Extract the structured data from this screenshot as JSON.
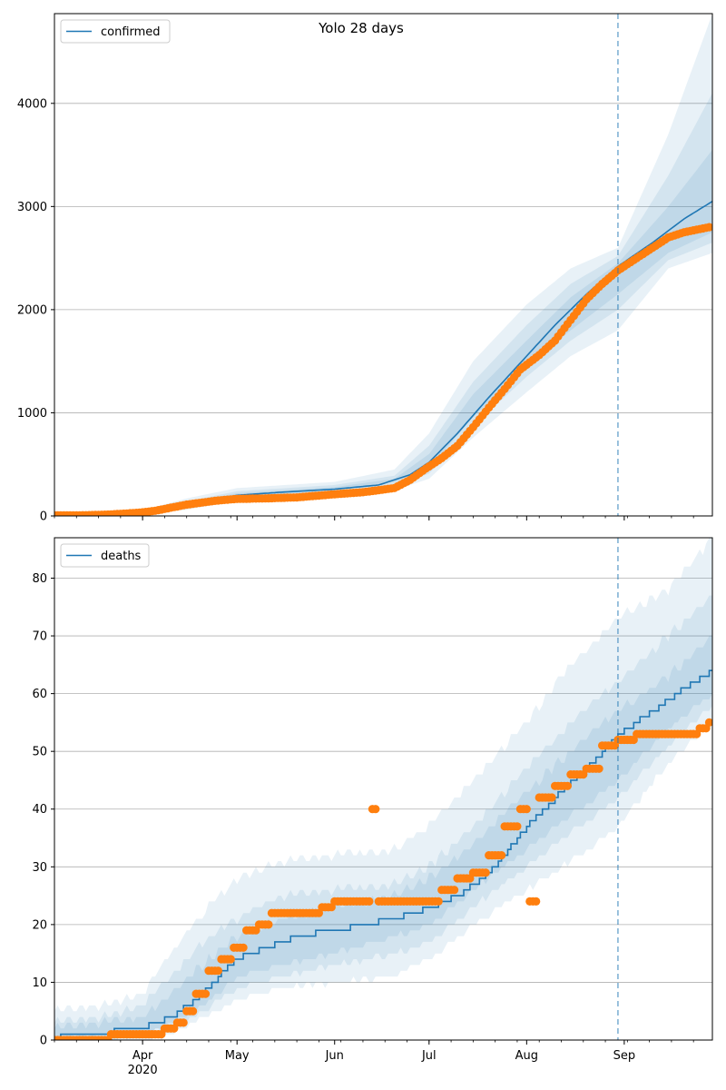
{
  "figure": {
    "title": "Yolo 28 days"
  },
  "colors": {
    "line": "#1f77b4",
    "points": "#ff7f0e",
    "band": "#1f77b4",
    "grid": "#b0b0b0",
    "axis": "#000000"
  },
  "chart_data": [
    {
      "type": "line",
      "legend": "confirmed",
      "legend_position": "top-left",
      "grid": "horizontal",
      "xlim": [
        "2020-03-04",
        "2020-09-29"
      ],
      "ylim": [
        0,
        4870
      ],
      "yticks": [
        0,
        1000,
        2000,
        3000,
        4000
      ],
      "forecast_start": "2020-08-30",
      "model": {
        "name": "confirmed",
        "x": [
          "2020-03-04",
          "2020-03-22",
          "2020-04-01",
          "2020-04-15",
          "2020-05-01",
          "2020-05-15",
          "2020-06-01",
          "2020-06-15",
          "2020-06-25",
          "2020-07-01",
          "2020-07-10",
          "2020-07-20",
          "2020-08-01",
          "2020-08-10",
          "2020-08-20",
          "2020-08-30",
          "2020-09-10",
          "2020-09-20",
          "2020-09-29"
        ],
        "values": [
          20,
          20,
          30,
          110,
          200,
          230,
          260,
          300,
          400,
          520,
          800,
          1150,
          1550,
          1850,
          2150,
          2420,
          2650,
          2880,
          3050
        ]
      },
      "bands": {
        "x": [
          "2020-03-04",
          "2020-04-01",
          "2020-04-15",
          "2020-05-01",
          "2020-06-01",
          "2020-06-20",
          "2020-07-01",
          "2020-07-15",
          "2020-08-01",
          "2020-08-15",
          "2020-08-30",
          "2020-09-15",
          "2020-09-29"
        ],
        "outer_lower": [
          0,
          15,
          60,
          150,
          210,
          250,
          360,
          760,
          1200,
          1550,
          1800,
          2400,
          2550
        ],
        "outer_upper": [
          40,
          55,
          170,
          270,
          330,
          450,
          800,
          1500,
          2050,
          2400,
          2600,
          3700,
          4870
        ],
        "mid_lower": [
          5,
          20,
          80,
          170,
          230,
          290,
          410,
          870,
          1350,
          1700,
          2000,
          2480,
          2650
        ],
        "mid_upper": [
          30,
          45,
          140,
          240,
          300,
          390,
          680,
          1300,
          1850,
          2250,
          2520,
          3300,
          4100
        ],
        "inner_lower": [
          10,
          25,
          95,
          185,
          245,
          330,
          460,
          960,
          1450,
          1800,
          2150,
          2550,
          2750
        ],
        "inner_upper": [
          25,
          38,
          125,
          220,
          280,
          360,
          600,
          1180,
          1700,
          2120,
          2450,
          3000,
          3550
        ]
      },
      "observed": {
        "name": "observed",
        "x": [
          "2020-03-04",
          "2020-03-10",
          "2020-03-15",
          "2020-03-20",
          "2020-03-25",
          "2020-03-30",
          "2020-04-01",
          "2020-04-05",
          "2020-04-10",
          "2020-04-15",
          "2020-04-20",
          "2020-04-25",
          "2020-05-01",
          "2020-05-10",
          "2020-05-20",
          "2020-06-01",
          "2020-06-10",
          "2020-06-20",
          "2020-06-25",
          "2020-06-30",
          "2020-07-05",
          "2020-07-10",
          "2020-07-15",
          "2020-07-20",
          "2020-07-25",
          "2020-07-30",
          "2020-08-05",
          "2020-08-10",
          "2020-08-15",
          "2020-08-20",
          "2020-08-25",
          "2020-08-30",
          "2020-09-05",
          "2020-09-10",
          "2020-09-15",
          "2020-09-20",
          "2020-09-28"
        ],
        "values": [
          5,
          5,
          8,
          12,
          20,
          30,
          35,
          50,
          80,
          110,
          130,
          150,
          165,
          170,
          180,
          210,
          230,
          270,
          350,
          460,
          560,
          680,
          860,
          1050,
          1230,
          1420,
          1560,
          1700,
          1900,
          2100,
          2250,
          2380,
          2500,
          2600,
          2700,
          2750,
          2800
        ]
      }
    },
    {
      "type": "line",
      "legend": "deaths",
      "legend_position": "top-left",
      "grid": "horizontal",
      "xlim": [
        "2020-03-04",
        "2020-09-29"
      ],
      "ylim": [
        0,
        87
      ],
      "yticks": [
        0,
        10,
        20,
        30,
        40,
        50,
        60,
        70,
        80
      ],
      "xticks": [
        {
          "date": "2020-04-01",
          "label": "Apr"
        },
        {
          "date": "2020-05-01",
          "label": "May"
        },
        {
          "date": "2020-06-01",
          "label": "Jun"
        },
        {
          "date": "2020-07-01",
          "label": "Jul"
        },
        {
          "date": "2020-08-01",
          "label": "Aug"
        },
        {
          "date": "2020-09-01",
          "label": "Sep"
        }
      ],
      "xtick_year_label": "2020",
      "forecast_start": "2020-08-30",
      "model": {
        "name": "deaths",
        "x": [
          "2020-03-04",
          "2020-03-08",
          "2020-03-20",
          "2020-03-25",
          "2020-04-01",
          "2020-04-05",
          "2020-04-10",
          "2020-04-15",
          "2020-04-20",
          "2020-04-25",
          "2020-05-01",
          "2020-05-05",
          "2020-05-10",
          "2020-05-15",
          "2020-05-20",
          "2020-06-01",
          "2020-06-10",
          "2020-06-20",
          "2020-07-01",
          "2020-07-10",
          "2020-07-20",
          "2020-08-01",
          "2020-08-10",
          "2020-08-20",
          "2020-08-30",
          "2020-09-10",
          "2020-09-20",
          "2020-09-29"
        ],
        "values": [
          0,
          1,
          1,
          2,
          2,
          3,
          4,
          6,
          8,
          11,
          14,
          15,
          16,
          17,
          18,
          19,
          20,
          21,
          23,
          25,
          29,
          37,
          42,
          47,
          53,
          57,
          61,
          64
        ]
      },
      "bands": {
        "x": [
          "2020-03-04",
          "2020-03-20",
          "2020-04-01",
          "2020-04-10",
          "2020-04-20",
          "2020-05-01",
          "2020-05-15",
          "2020-06-01",
          "2020-06-20",
          "2020-07-01",
          "2020-07-15",
          "2020-08-01",
          "2020-08-15",
          "2020-08-30",
          "2020-09-15",
          "2020-09-29"
        ],
        "outer_lower": [
          0,
          0,
          0,
          1,
          4,
          7,
          9,
          10,
          11,
          14,
          20,
          26,
          31,
          37,
          48,
          55
        ],
        "outer_upper": [
          5,
          6,
          8,
          15,
          22,
          28,
          31,
          32,
          33,
          37,
          45,
          55,
          65,
          73,
          78,
          87
        ],
        "mid_lower": [
          0,
          0,
          1,
          2,
          5,
          9,
          11,
          13,
          15,
          17,
          23,
          30,
          36,
          42,
          51,
          58
        ],
        "mid_upper": [
          3,
          4,
          6,
          11,
          17,
          21,
          25,
          26,
          27,
          30,
          37,
          47,
          55,
          62,
          70,
          77
        ],
        "inner_lower": [
          0,
          1,
          1,
          3,
          6,
          11,
          13,
          15,
          18,
          20,
          26,
          33,
          39,
          45,
          54,
          60
        ],
        "inner_upper": [
          2,
          3,
          4,
          8,
          13,
          18,
          21,
          23,
          25,
          28,
          34,
          43,
          50,
          57,
          63,
          70
        ]
      },
      "observed": {
        "name": "observed",
        "x": [
          "2020-03-04",
          "2020-03-10",
          "2020-03-22",
          "2020-03-30",
          "2020-04-08",
          "2020-04-12",
          "2020-04-15",
          "2020-04-18",
          "2020-04-22",
          "2020-04-26",
          "2020-04-30",
          "2020-05-04",
          "2020-05-08",
          "2020-05-12",
          "2020-05-20",
          "2020-05-28",
          "2020-06-01",
          "2020-06-08",
          "2020-06-13",
          "2020-06-15",
          "2020-06-20",
          "2020-06-30",
          "2020-07-05",
          "2020-07-10",
          "2020-07-15",
          "2020-07-20",
          "2020-07-25",
          "2020-07-30",
          "2020-08-05",
          "2020-08-10",
          "2020-08-15",
          "2020-08-20",
          "2020-08-25",
          "2020-08-30",
          "2020-09-05",
          "2020-09-10",
          "2020-09-15",
          "2020-09-20",
          "2020-09-25",
          "2020-09-28"
        ],
        "values": [
          0,
          0,
          1,
          1,
          2,
          3,
          5,
          8,
          12,
          14,
          16,
          19,
          20,
          22,
          22,
          23,
          24,
          24,
          40,
          24,
          24,
          24,
          26,
          28,
          29,
          32,
          37,
          40,
          42,
          44,
          46,
          47,
          51,
          52,
          53,
          53,
          53,
          53,
          54,
          55
        ]
      }
    }
  ]
}
